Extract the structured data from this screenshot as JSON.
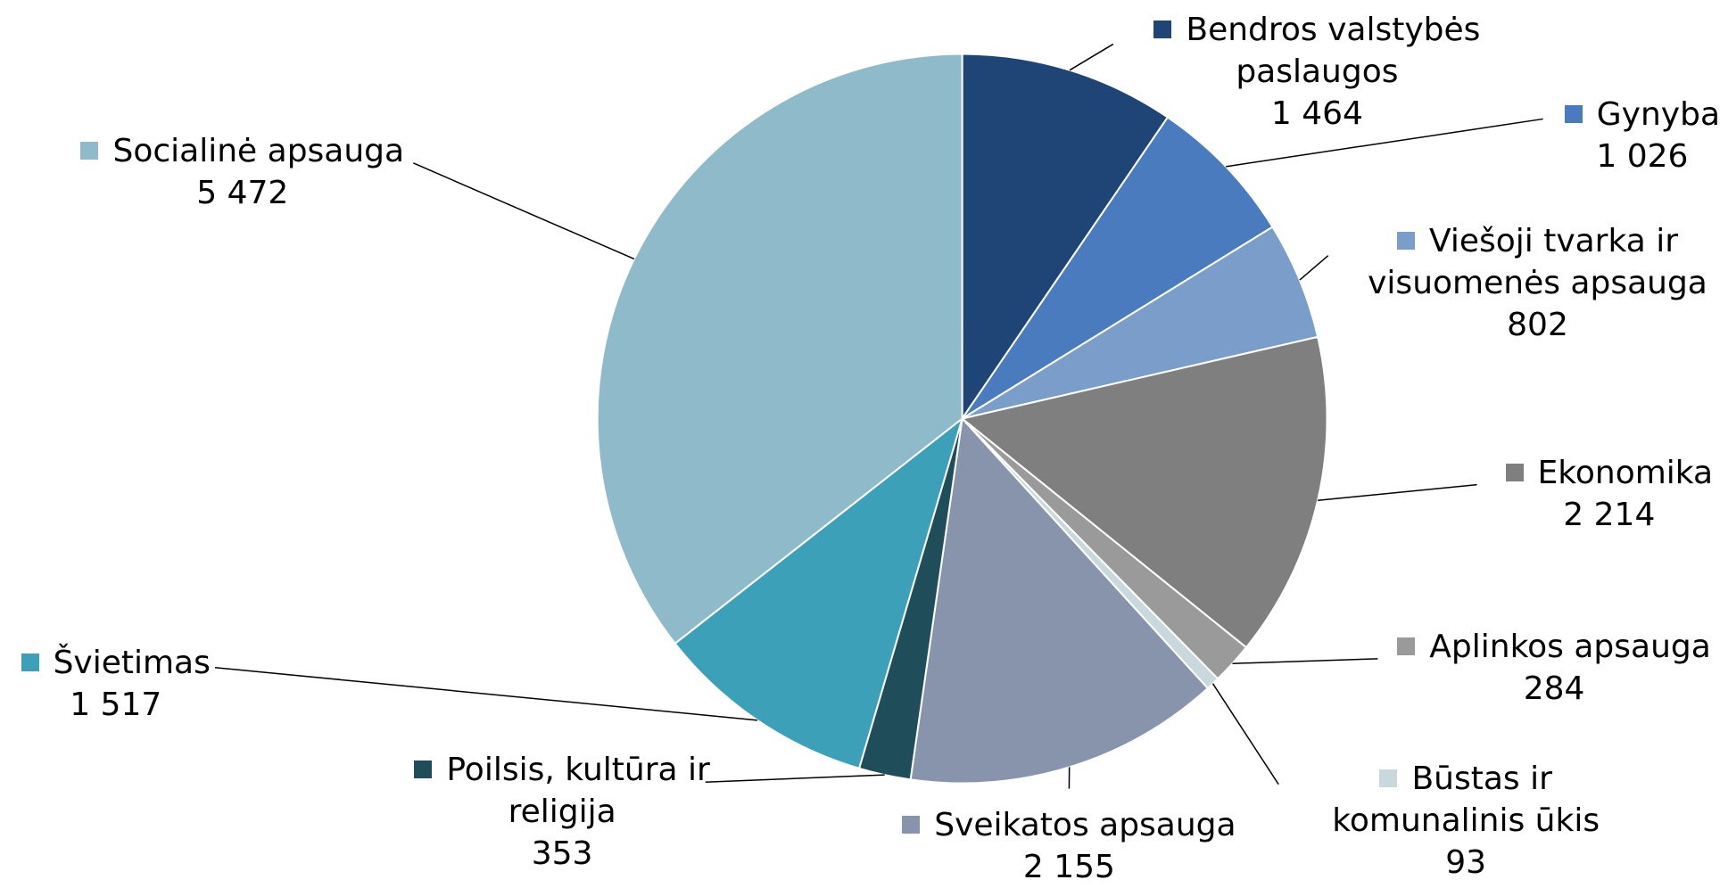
{
  "chart_data": {
    "type": "pie",
    "categories": [
      "Bendros valstybės paslaugos",
      "Gynyba",
      "Viešoji tvarka ir visuomenės apsauga",
      "Ekonomika",
      "Aplinkos apsauga",
      "Būstas ir komunalinis ūkis",
      "Sveikatos apsauga",
      "Poilsis, kultūra ir religija",
      "Švietimas",
      "Socialinė apsauga"
    ],
    "values": [
      1464,
      1026,
      802,
      2214,
      284,
      93,
      2155,
      353,
      1517,
      5472
    ],
    "value_labels": [
      "1 464",
      "1 026",
      "802",
      "2 214",
      "284",
      "93",
      "2 155",
      "353",
      "1 517",
      "5 472"
    ],
    "colors": [
      "#1f4577",
      "#4a7bbf",
      "#7b9dc9",
      "#7f7f7f",
      "#9a9a9a",
      "#c9d8dc",
      "#8794ab",
      "#1f4e5a",
      "#3ba0b8",
      "#8fbaca"
    ]
  }
}
